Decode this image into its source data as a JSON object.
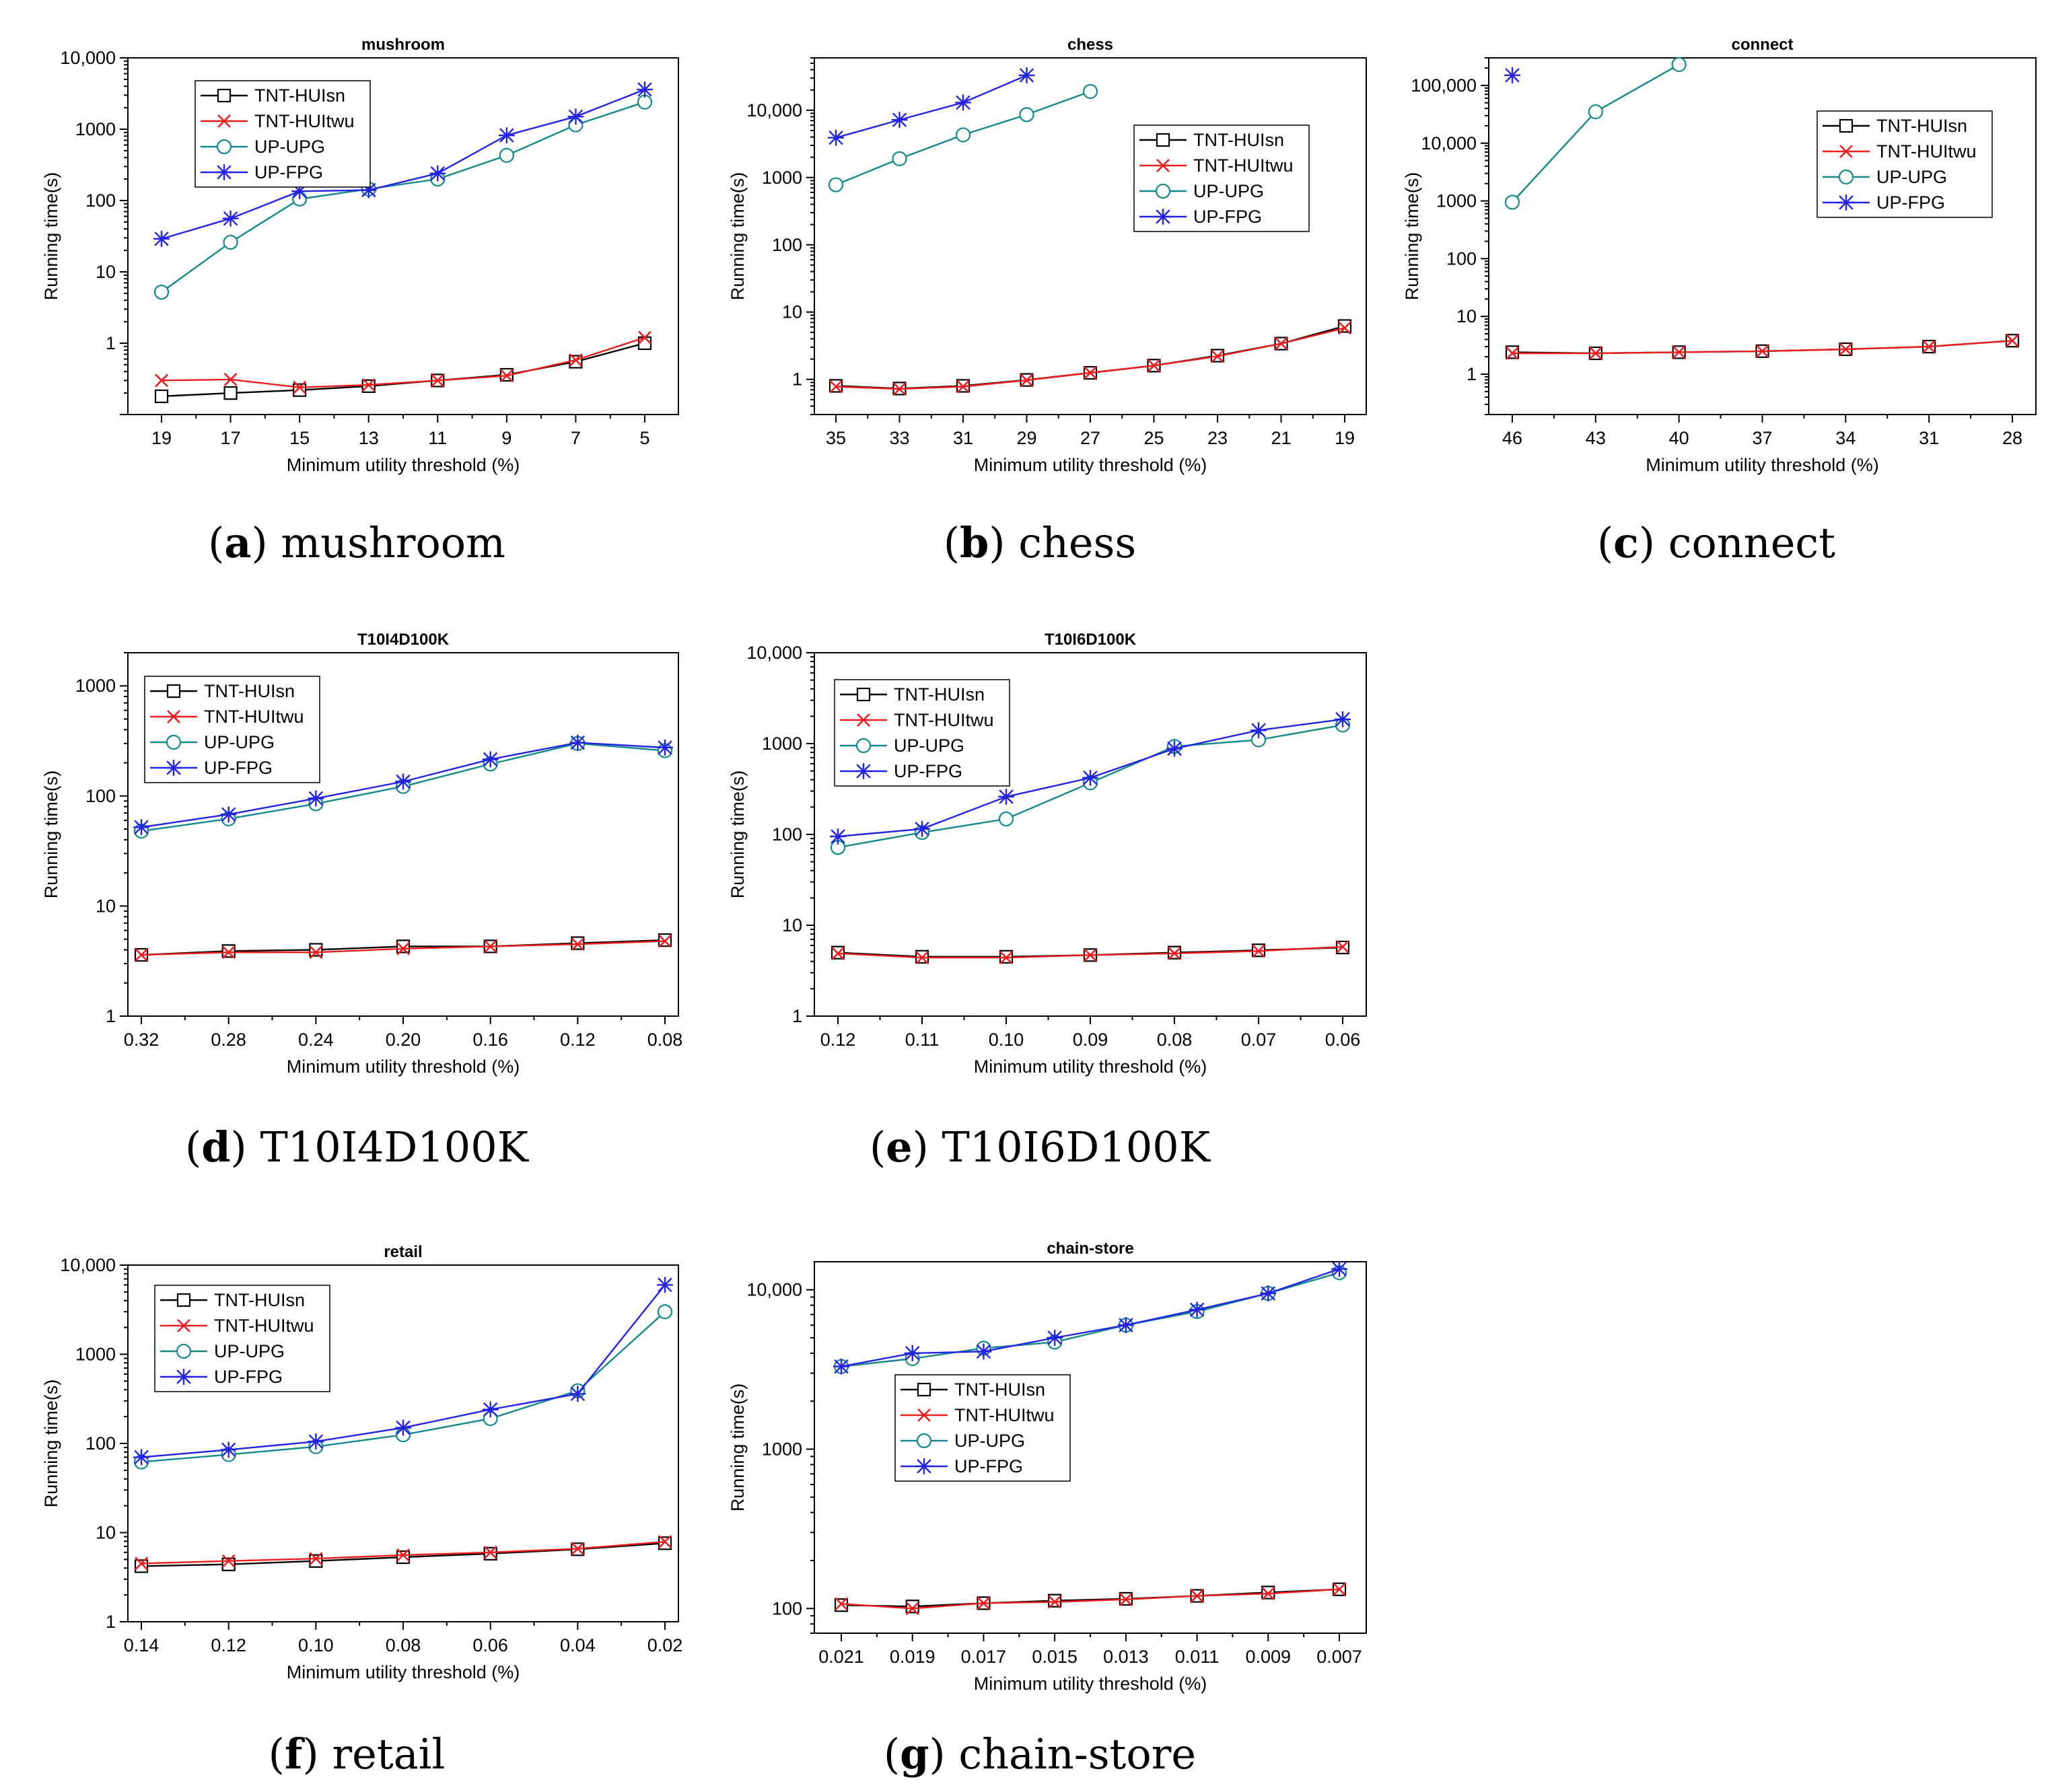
{
  "colors": {
    "TNT-HUIsn": "#000000",
    "TNT-HUItwu": "#ee1c1c",
    "UP-UPG": "#12898a",
    "UP-FPG": "#2323e6"
  },
  "series_styles": {
    "TNT-HUIsn": "square",
    "TNT-HUItwu": "x",
    "UP-UPG": "circle",
    "UP-FPG": "star"
  },
  "chart_data": [
    {
      "id": "a",
      "type": "line",
      "caption_letter": "a",
      "caption_name": "mushroom",
      "title": "mushroom",
      "xlabel": "Minimum utility threshold (%)",
      "ylabel": "Running time(s)",
      "yscale": "log",
      "ylim": [
        0.1,
        10000
      ],
      "yticks": [
        1,
        10,
        100,
        1000,
        10000
      ],
      "ytick_labels": [
        "1",
        "10",
        "100",
        "1000",
        "10,000"
      ],
      "categories": [
        "19",
        "17",
        "15",
        "13",
        "11",
        "9",
        "7",
        "5"
      ],
      "legend_position": "upper-left",
      "series": [
        {
          "name": "TNT-HUIsn",
          "values": [
            0.18,
            0.2,
            0.22,
            0.25,
            0.3,
            0.36,
            0.55,
            1.0
          ]
        },
        {
          "name": "TNT-HUItwu",
          "values": [
            0.3,
            0.31,
            0.24,
            0.26,
            0.3,
            0.35,
            0.58,
            1.2
          ]
        },
        {
          "name": "UP-UPG",
          "values": [
            5.2,
            26,
            105,
            145,
            200,
            430,
            1150,
            2400
          ]
        },
        {
          "name": "UP-FPG",
          "values": [
            29,
            56,
            135,
            140,
            240,
            820,
            1500,
            3600
          ]
        }
      ]
    },
    {
      "id": "b",
      "type": "line",
      "caption_letter": "b",
      "caption_name": "chess",
      "title": "chess",
      "xlabel": "Minimum utility threshold (%)",
      "ylabel": "Running time(s)",
      "yscale": "log",
      "ylim": [
        0.3,
        60000
      ],
      "yticks": [
        1,
        10,
        100,
        1000,
        10000
      ],
      "ytick_labels": [
        "1",
        "10",
        "100",
        "1000",
        "10,000"
      ],
      "categories": [
        "35",
        "33",
        "31",
        "29",
        "27",
        "25",
        "23",
        "21",
        "19"
      ],
      "legend_position": "upper-right",
      "series": [
        {
          "name": "TNT-HUIsn",
          "values": [
            0.8,
            0.73,
            0.8,
            0.98,
            1.25,
            1.6,
            2.25,
            3.4,
            6.2
          ]
        },
        {
          "name": "TNT-HUItwu",
          "values": [
            0.78,
            0.72,
            0.78,
            0.97,
            1.25,
            1.6,
            2.2,
            3.4,
            5.8
          ]
        },
        {
          "name": "UP-UPG",
          "values": [
            780,
            1900,
            4300,
            8600,
            19000,
            null,
            null,
            null,
            null
          ]
        },
        {
          "name": "UP-FPG",
          "values": [
            3900,
            7200,
            13000,
            33000,
            null,
            null,
            null,
            null,
            null
          ]
        }
      ]
    },
    {
      "id": "c",
      "type": "line",
      "caption_letter": "c",
      "caption_name": "connect",
      "title": "connect",
      "xlabel": "Minimum utility threshold (%)",
      "ylabel": "Running time(s)",
      "yscale": "log",
      "ylim": [
        0.2,
        300000
      ],
      "yticks": [
        1,
        10,
        100,
        1000,
        10000,
        100000
      ],
      "ytick_labels": [
        "1",
        "10",
        "100",
        "1000",
        "10,000",
        "100,000"
      ],
      "categories": [
        "46",
        "43",
        "40",
        "37",
        "34",
        "31",
        "28"
      ],
      "legend_position": "upper-right",
      "series": [
        {
          "name": "TNT-HUIsn",
          "values": [
            2.4,
            2.3,
            2.4,
            2.5,
            2.7,
            3.0,
            3.8
          ]
        },
        {
          "name": "TNT-HUItwu",
          "values": [
            2.3,
            2.3,
            2.4,
            2.5,
            2.7,
            3.0,
            3.8
          ]
        },
        {
          "name": "UP-UPG",
          "values": [
            950,
            35000,
            230000,
            null,
            null,
            null,
            null
          ]
        },
        {
          "name": "UP-FPG",
          "values": [
            150000,
            null,
            null,
            null,
            null,
            null,
            null
          ]
        }
      ]
    },
    {
      "id": "d",
      "type": "line",
      "caption_letter": "d",
      "caption_name": "T10I4D100K",
      "title": "T10I4D100K",
      "xlabel": "Minimum utility threshold (%)",
      "ylabel": "Running time(s)",
      "yscale": "log",
      "ylim": [
        1,
        2000
      ],
      "yticks": [
        1,
        10,
        100,
        1000
      ],
      "ytick_labels": [
        "1",
        "10",
        "100",
        "1000"
      ],
      "categories": [
        "0.32",
        "0.28",
        "0.24",
        "0.20",
        "0.16",
        "0.12",
        "0.08"
      ],
      "legend_position": "upper-left",
      "series": [
        {
          "name": "TNT-HUIsn",
          "values": [
            3.6,
            3.9,
            4.0,
            4.3,
            4.3,
            4.6,
            4.9
          ]
        },
        {
          "name": "TNT-HUItwu",
          "values": [
            3.6,
            3.8,
            3.8,
            4.1,
            4.3,
            4.5,
            4.8
          ]
        },
        {
          "name": "UP-UPG",
          "values": [
            48,
            62,
            85,
            122,
            195,
            300,
            258
          ]
        },
        {
          "name": "UP-FPG",
          "values": [
            52,
            68,
            95,
            135,
            215,
            305,
            275
          ]
        }
      ]
    },
    {
      "id": "e",
      "type": "line",
      "caption_letter": "e",
      "caption_name": "T10I6D100K",
      "title": "T10I6D100K",
      "xlabel": "Minimum utility threshold (%)",
      "ylabel": "Running time(s)",
      "yscale": "log",
      "ylim": [
        1,
        10000
      ],
      "yticks": [
        1,
        10,
        100,
        1000,
        10000
      ],
      "ytick_labels": [
        "1",
        "10",
        "100",
        "1000",
        "10,000"
      ],
      "categories": [
        "0.12",
        "0.11",
        "0.10",
        "0.09",
        "0.08",
        "0.07",
        "0.06"
      ],
      "legend_position": "upper-left",
      "series": [
        {
          "name": "TNT-HUIsn",
          "values": [
            5.0,
            4.5,
            4.5,
            4.7,
            5.0,
            5.3,
            5.7
          ]
        },
        {
          "name": "TNT-HUItwu",
          "values": [
            4.9,
            4.4,
            4.4,
            4.7,
            4.9,
            5.2,
            5.8
          ]
        },
        {
          "name": "UP-UPG",
          "values": [
            72,
            105,
            148,
            370,
            930,
            1100,
            1600
          ]
        },
        {
          "name": "UP-FPG",
          "values": [
            95,
            115,
            260,
            420,
            880,
            1400,
            1850
          ]
        }
      ]
    },
    {
      "id": "f",
      "type": "line",
      "caption_letter": "f",
      "caption_name": "retail",
      "title": "retail",
      "xlabel": "Minimum utility threshold (%)",
      "ylabel": "Running time(s)",
      "yscale": "log",
      "ylim": [
        1,
        10000
      ],
      "yticks": [
        1,
        10,
        100,
        1000,
        10000
      ],
      "ytick_labels": [
        "1",
        "10",
        "100",
        "1000",
        "10,000"
      ],
      "categories": [
        "0.14",
        "0.12",
        "0.10",
        "0.08",
        "0.06",
        "0.04",
        "0.02"
      ],
      "legend_position": "upper-left",
      "series": [
        {
          "name": "TNT-HUIsn",
          "values": [
            4.2,
            4.4,
            4.8,
            5.3,
            5.8,
            6.5,
            7.6
          ]
        },
        {
          "name": "TNT-HUItwu",
          "values": [
            4.5,
            4.8,
            5.1,
            5.6,
            6.0,
            6.6,
            7.9
          ]
        },
        {
          "name": "UP-UPG",
          "values": [
            62,
            75,
            92,
            125,
            190,
            390,
            3000
          ]
        },
        {
          "name": "UP-FPG",
          "values": [
            70,
            85,
            105,
            150,
            240,
            360,
            6000
          ]
        }
      ]
    },
    {
      "id": "g",
      "type": "line",
      "caption_letter": "g",
      "caption_name": "chain-store",
      "title": "chain-store",
      "xlabel": "Minimum utility threshold (%)",
      "ylabel": "Running time(s)",
      "yscale": "log",
      "ylim": [
        70,
        15000
      ],
      "yticks": [
        100,
        1000,
        10000
      ],
      "ytick_labels": [
        "100",
        "1000",
        "10,000"
      ],
      "categories": [
        "0.021",
        "0.019",
        "0.017",
        "0.015",
        "0.013",
        "0.011",
        "0.009",
        "0.007"
      ],
      "legend_position": "left",
      "series": [
        {
          "name": "TNT-HUIsn",
          "values": [
            105,
            103,
            108,
            112,
            115,
            120,
            126,
            132
          ]
        },
        {
          "name": "TNT-HUItwu",
          "values": [
            107,
            100,
            108,
            110,
            114,
            120,
            124,
            132
          ]
        },
        {
          "name": "UP-UPG",
          "values": [
            3300,
            3700,
            4300,
            4700,
            6000,
            7300,
            9500,
            12800
          ]
        },
        {
          "name": "UP-FPG",
          "values": [
            3300,
            4000,
            4100,
            5000,
            6000,
            7500,
            9500,
            13500
          ]
        }
      ]
    }
  ]
}
